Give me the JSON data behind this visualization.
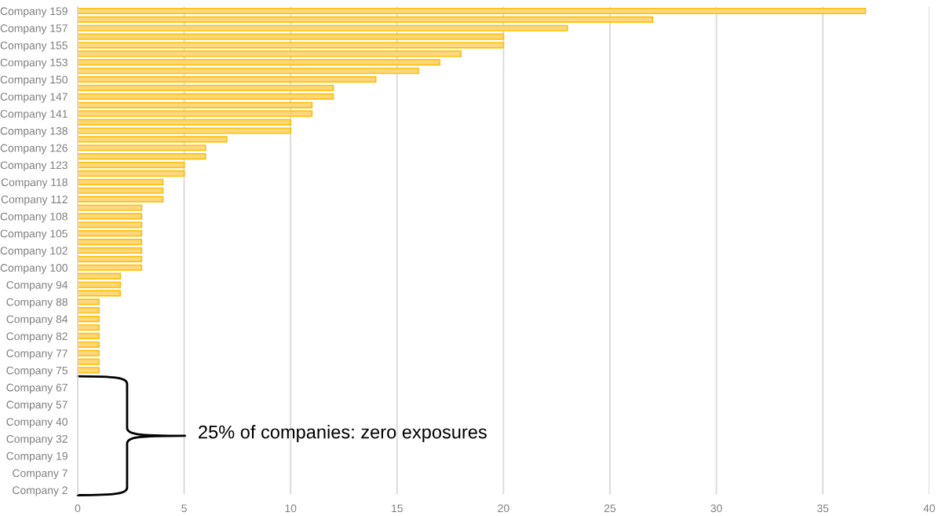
{
  "chart_data": {
    "type": "bar",
    "orientation": "horizontal",
    "categories": [
      "Company 159",
      null,
      "Company 157",
      null,
      "Company 155",
      null,
      "Company 153",
      null,
      "Company 150",
      null,
      "Company 147",
      null,
      "Company 141",
      null,
      "Company 138",
      null,
      "Company 126",
      null,
      "Company 123",
      null,
      "Company 118",
      null,
      "Company 112",
      null,
      "Company 108",
      null,
      "Company 105",
      null,
      "Company 102",
      null,
      "Company 100",
      null,
      "Company 94",
      null,
      "Company 88",
      null,
      "Company 84",
      null,
      "Company 82",
      null,
      "Company 77",
      null,
      "Company 75",
      null,
      "Company 67",
      null,
      "Company 57",
      null,
      "Company 40",
      null,
      "Company 32",
      null,
      "Company 19",
      null,
      "Company 7",
      null,
      "Company 2"
    ],
    "values": [
      37,
      27,
      23,
      20,
      20,
      18,
      17,
      16,
      14,
      12,
      12,
      11,
      11,
      10,
      10,
      7,
      6,
      6,
      5,
      5,
      4,
      4,
      4,
      3,
      3,
      3,
      3,
      3,
      3,
      3,
      3,
      2,
      2,
      2,
      1,
      1,
      1,
      1,
      1,
      1,
      1,
      1,
      1,
      0,
      0,
      0,
      0,
      0,
      0,
      0,
      0,
      0,
      0,
      0,
      0,
      0,
      0
    ],
    "color": "#ffd780",
    "xlim": [
      0,
      40
    ],
    "xticks": [
      0,
      5,
      10,
      15,
      20,
      25,
      30,
      35,
      40
    ],
    "grid": "x",
    "annotations": [
      "25% of companies: zero exposures"
    ]
  }
}
